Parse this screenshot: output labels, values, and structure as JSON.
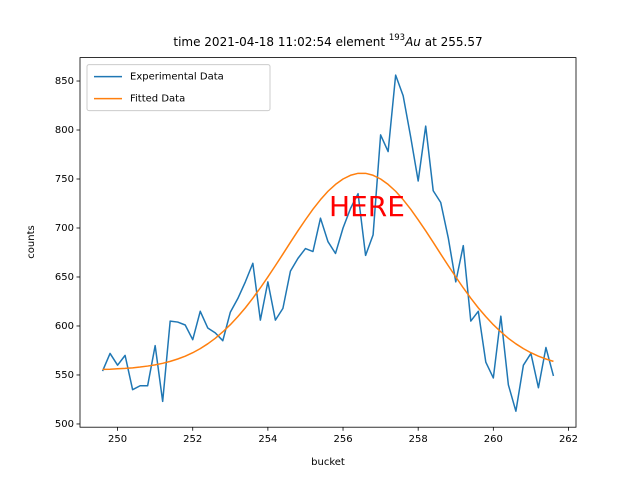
{
  "chart_data": {
    "type": "line",
    "title": {
      "prefix": "time 2021-04-18 11:02:54 element ",
      "isotope_mass": "193",
      "element": "Au",
      "suffix": " at 255.57"
    },
    "xlabel": "bucket",
    "ylabel": "counts",
    "annotation": {
      "text": "HERE",
      "color": "#ff0000"
    },
    "x": [
      249.6,
      249.8,
      250.0,
      250.2,
      250.4,
      250.6,
      250.8,
      251.0,
      251.2,
      251.4,
      251.6,
      251.8,
      252.0,
      252.2,
      252.4,
      252.6,
      252.8,
      253.0,
      253.2,
      253.4,
      253.6,
      253.8,
      254.0,
      254.2,
      254.4,
      254.6,
      254.8,
      255.0,
      255.2,
      255.4,
      255.6,
      255.8,
      256.0,
      256.2,
      256.4,
      256.6,
      256.8,
      257.0,
      257.2,
      257.4,
      257.6,
      257.8,
      258.0,
      258.2,
      258.4,
      258.6,
      258.8,
      259.0,
      259.2,
      259.4,
      259.6,
      259.8,
      260.0,
      260.2,
      260.4,
      260.6,
      260.8,
      261.0,
      261.2,
      261.4,
      261.6
    ],
    "series": [
      {
        "name": "Experimental Data",
        "color": "#1f77b4",
        "values": [
          554,
          572,
          560,
          570,
          535,
          539,
          539,
          580,
          523,
          605,
          604,
          601,
          586,
          615,
          598,
          593,
          585,
          614,
          628,
          645,
          664,
          606,
          645,
          606,
          618,
          656,
          669,
          679,
          676,
          710,
          686,
          674,
          700,
          720,
          735,
          672,
          693,
          795,
          778,
          856,
          835,
          793,
          748,
          804,
          738,
          726,
          690,
          645,
          682,
          605,
          615,
          563,
          547,
          610,
          540,
          513,
          560,
          572,
          537,
          578,
          549
        ]
      },
      {
        "name": "Fitted Data",
        "color": "#ff7f0e",
        "values": [
          555.7,
          555.9,
          556.3,
          556.7,
          557.3,
          558.1,
          559.1,
          560.3,
          561.9,
          563.9,
          566.3,
          569.2,
          572.7,
          576.9,
          581.8,
          587.4,
          594.0,
          601.3,
          609.5,
          618.5,
          628.4,
          638.9,
          650.1,
          661.6,
          673.4,
          685.4,
          697.1,
          708.4,
          719.2,
          728.9,
          737.5,
          744.5,
          750.0,
          753.8,
          755.8,
          755.8,
          753.8,
          750.0,
          744.5,
          737.5,
          728.9,
          719.2,
          708.4,
          697.1,
          685.4,
          673.4,
          661.6,
          650.1,
          638.9,
          628.4,
          618.5,
          609.5,
          601.3,
          594.0,
          587.4,
          581.8,
          576.9,
          572.7,
          569.2,
          566.3,
          563.9
        ]
      }
    ],
    "xlim": [
      249.0,
      262.2
    ],
    "ylim": [
      496.7,
      873.9
    ],
    "xticks": [
      250,
      252,
      254,
      256,
      258,
      260,
      262
    ],
    "yticks": [
      500,
      550,
      600,
      650,
      700,
      750,
      800,
      850
    ],
    "legend": "upper left",
    "grid": false
  }
}
